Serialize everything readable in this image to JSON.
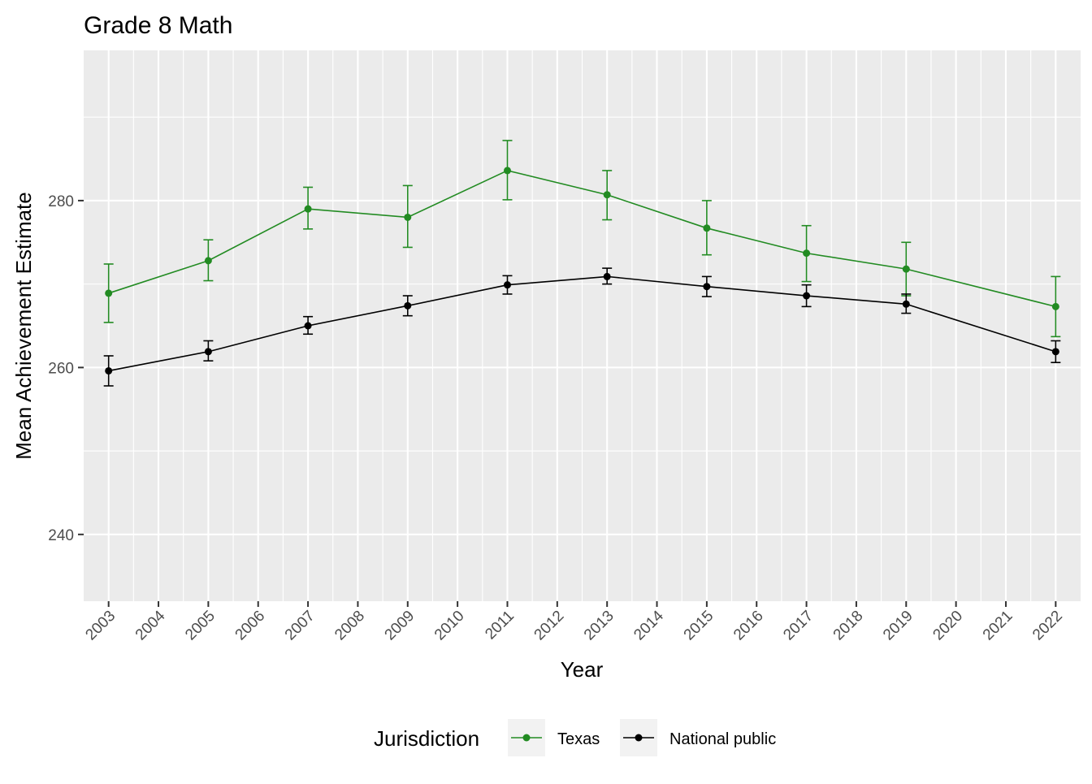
{
  "chart_data": {
    "type": "line",
    "title": "Grade 8 Math",
    "xlabel": "Year",
    "ylabel": "Mean Achievement Estimate",
    "x_ticks": [
      "2003",
      "2004",
      "2005",
      "2006",
      "2007",
      "2008",
      "2009",
      "2010",
      "2011",
      "2012",
      "2013",
      "2014",
      "2015",
      "2016",
      "2017",
      "2018",
      "2019",
      "2020",
      "2021",
      "2022"
    ],
    "y_ticks": [
      240,
      260,
      280
    ],
    "xlim": [
      2002.5,
      2022.5
    ],
    "ylim": [
      232,
      298
    ],
    "grid": true,
    "legend": {
      "title": "Jurisdiction",
      "position": "bottom"
    },
    "series": [
      {
        "name": "Texas",
        "color": "#228B22",
        "points": [
          {
            "x": 2003,
            "y": 268.9,
            "lo": 265.4,
            "hi": 272.4
          },
          {
            "x": 2005,
            "y": 272.8,
            "lo": 270.4,
            "hi": 275.3
          },
          {
            "x": 2007,
            "y": 279.0,
            "lo": 276.6,
            "hi": 281.6
          },
          {
            "x": 2009,
            "y": 278.0,
            "lo": 274.4,
            "hi": 281.8
          },
          {
            "x": 2011,
            "y": 283.6,
            "lo": 280.1,
            "hi": 287.2
          },
          {
            "x": 2013,
            "y": 280.7,
            "lo": 277.7,
            "hi": 283.6
          },
          {
            "x": 2015,
            "y": 276.7,
            "lo": 273.5,
            "hi": 280.0
          },
          {
            "x": 2017,
            "y": 273.7,
            "lo": 270.3,
            "hi": 277.0
          },
          {
            "x": 2019,
            "y": 271.8,
            "lo": 268.6,
            "hi": 275.0
          },
          {
            "x": 2022,
            "y": 267.3,
            "lo": 263.7,
            "hi": 270.9
          }
        ]
      },
      {
        "name": "National public",
        "color": "#000000",
        "points": [
          {
            "x": 2003,
            "y": 259.6,
            "lo": 257.8,
            "hi": 261.4
          },
          {
            "x": 2005,
            "y": 261.9,
            "lo": 260.8,
            "hi": 263.2
          },
          {
            "x": 2007,
            "y": 265.0,
            "lo": 264.0,
            "hi": 266.1
          },
          {
            "x": 2009,
            "y": 267.4,
            "lo": 266.2,
            "hi": 268.6
          },
          {
            "x": 2011,
            "y": 269.9,
            "lo": 268.8,
            "hi": 271.0
          },
          {
            "x": 2013,
            "y": 270.9,
            "lo": 270.0,
            "hi": 271.9
          },
          {
            "x": 2015,
            "y": 269.7,
            "lo": 268.5,
            "hi": 270.9
          },
          {
            "x": 2017,
            "y": 268.6,
            "lo": 267.3,
            "hi": 269.9
          },
          {
            "x": 2019,
            "y": 267.6,
            "lo": 266.5,
            "hi": 268.8
          },
          {
            "x": 2022,
            "y": 261.9,
            "lo": 260.6,
            "hi": 263.2
          }
        ]
      }
    ]
  }
}
